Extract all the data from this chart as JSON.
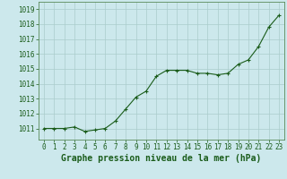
{
  "hours": [
    0,
    1,
    2,
    3,
    4,
    5,
    6,
    7,
    8,
    9,
    10,
    11,
    12,
    13,
    14,
    15,
    16,
    17,
    18,
    19,
    20,
    21,
    22,
    23
  ],
  "pressure": [
    1011.0,
    1011.0,
    1011.0,
    1011.1,
    1010.8,
    1010.9,
    1011.0,
    1011.5,
    1012.3,
    1013.1,
    1013.5,
    1014.5,
    1014.9,
    1014.9,
    1014.9,
    1014.7,
    1014.7,
    1014.6,
    1014.7,
    1015.3,
    1015.6,
    1016.5,
    1017.8,
    1018.6
  ],
  "line_color": "#1a5c1a",
  "marker": "P",
  "marker_size": 2.5,
  "bg_color": "#cce8ec",
  "grid_color": "#aacccc",
  "xlabel": "Graphe pression niveau de la mer (hPa)",
  "xlabel_color": "#1a5c1a",
  "tick_color": "#1a5c1a",
  "ylim": [
    1010.25,
    1019.5
  ],
  "yticks": [
    1011,
    1012,
    1013,
    1014,
    1015,
    1016,
    1017,
    1018,
    1019
  ],
  "spine_color": "#5a8a5a",
  "label_fontsize": 7,
  "tick_fontsize": 5.5
}
